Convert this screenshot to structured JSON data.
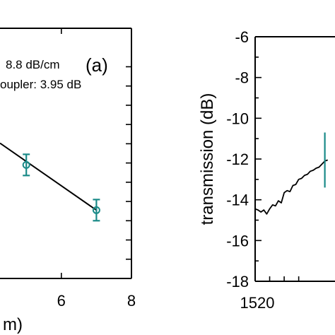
{
  "chart_data": [
    {
      "type": "scatter",
      "panel_label": "(a)",
      "annotation_lines": [
        "8.8 dB/cm",
        "oupler: 3.95 dB"
      ],
      "xlabel_fragment": "m)",
      "xlim": [
        4.25,
        8
      ],
      "ylim": [
        -19,
        -6
      ],
      "x_ticks": [
        6,
        8
      ],
      "x_tick_labels": [
        "6",
        "8"
      ],
      "y_ticks": [
        -18,
        -17,
        -16,
        -15,
        -14,
        -13,
        -12,
        -11,
        -10,
        -9,
        -8
      ],
      "points": [
        {
          "x": 5,
          "y": -13.1,
          "err": 0.55
        },
        {
          "x": 7,
          "y": -15.45,
          "err": 0.55
        }
      ],
      "fit_line": {
        "x": [
          4.25,
          7
        ],
        "y": [
          -11.97,
          -15.45
        ]
      },
      "colors": {
        "points": "#1a8a88",
        "fit": "#000000"
      }
    },
    {
      "type": "line",
      "ylabel": "transmission (dB)",
      "xlim": [
        1520,
        1531
      ],
      "ylim": [
        -18,
        -6
      ],
      "x_ticks": [
        1520
      ],
      "x_tick_labels": [
        "1520"
      ],
      "y_ticks": [
        -18,
        -16,
        -14,
        -12,
        -10,
        -8,
        -6
      ],
      "y_tick_labels": [
        "-18",
        "-16",
        "-14",
        "-12",
        "-10",
        "-8",
        "-6"
      ],
      "marker": {
        "x": 1529.6,
        "y_low": -13.4,
        "y_high": -10.7
      },
      "series": [
        {
          "x": [
            1520,
            1520.4,
            1520.8,
            1521.2,
            1521.6,
            1522.0,
            1522.4,
            1522.8,
            1523.2,
            1523.6,
            1524.0,
            1524.4,
            1524.8,
            1525.2,
            1525.6,
            1526.0,
            1526.4,
            1526.8,
            1527.2,
            1527.6,
            1528.0,
            1528.4,
            1528.8,
            1529.2,
            1529.6,
            1530.0
          ],
          "y": [
            -14.45,
            -14.5,
            -14.6,
            -14.5,
            -14.7,
            -14.45,
            -14.25,
            -14.3,
            -14.05,
            -14.15,
            -13.65,
            -13.55,
            -13.6,
            -13.3,
            -13.25,
            -13.0,
            -12.95,
            -12.8,
            -12.75,
            -12.6,
            -12.55,
            -12.45,
            -12.4,
            -12.25,
            -12.1,
            -12.05
          ]
        }
      ],
      "colors": {
        "line": "#000000",
        "marker": "#1a8a88"
      }
    }
  ]
}
